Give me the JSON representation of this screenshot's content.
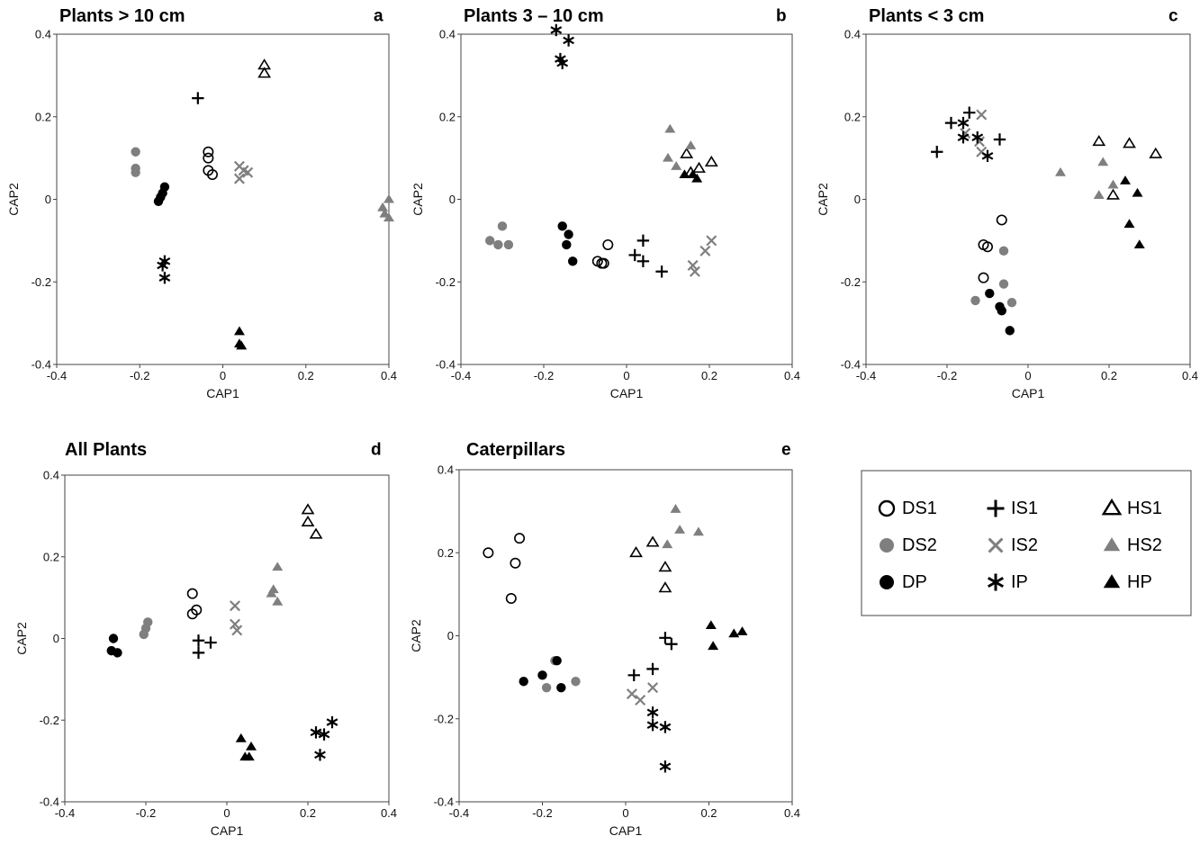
{
  "chart_data": [
    {
      "type": "scatter",
      "panel": "a",
      "title": "Plants  > 10 cm",
      "xlabel": "CAP1",
      "ylabel": "CAP2",
      "xlim": [
        -0.4,
        0.4
      ],
      "ylim": [
        -0.4,
        0.4
      ],
      "xticks": [
        "-0.4",
        "-0.2",
        "0",
        "0.2",
        "0.4"
      ],
      "yticks": [
        "0.4",
        "0.2",
        "0",
        "-0.2",
        "-0.4"
      ],
      "series": [
        {
          "name": "DS1",
          "points": [
            [
              -0.035,
              0.115
            ],
            [
              -0.035,
              0.1
            ],
            [
              -0.035,
              0.07
            ],
            [
              -0.025,
              0.06
            ]
          ]
        },
        {
          "name": "DS2",
          "points": [
            [
              -0.21,
              0.115
            ],
            [
              -0.21,
              0.075
            ],
            [
              -0.21,
              0.065
            ]
          ]
        },
        {
          "name": "DP",
          "points": [
            [
              -0.14,
              0.03
            ],
            [
              -0.145,
              0.015
            ],
            [
              -0.15,
              0.005
            ],
            [
              -0.155,
              -0.005
            ]
          ]
        },
        {
          "name": "IS1",
          "points": [
            [
              -0.06,
              0.245
            ]
          ]
        },
        {
          "name": "IS2",
          "points": [
            [
              0.04,
              0.08
            ],
            [
              0.05,
              0.07
            ],
            [
              0.06,
              0.065
            ],
            [
              0.04,
              0.05
            ]
          ]
        },
        {
          "name": "IP",
          "points": [
            [
              -0.14,
              -0.15
            ],
            [
              -0.145,
              -0.16
            ],
            [
              -0.14,
              -0.19
            ]
          ]
        },
        {
          "name": "HS1",
          "points": [
            [
              0.1,
              0.325
            ],
            [
              0.1,
              0.305
            ]
          ]
        },
        {
          "name": "HS2",
          "points": [
            [
              0.4,
              0.0
            ],
            [
              0.385,
              -0.02
            ],
            [
              0.39,
              -0.035
            ],
            [
              0.4,
              -0.045
            ]
          ]
        },
        {
          "name": "HP",
          "points": [
            [
              0.04,
              -0.32
            ],
            [
              0.04,
              -0.35
            ],
            [
              0.045,
              -0.355
            ]
          ]
        }
      ]
    },
    {
      "type": "scatter",
      "panel": "b",
      "title": "Plants 3 – 10 cm",
      "xlabel": "CAP1",
      "ylabel": "CAP2",
      "xlim": [
        -0.4,
        0.4
      ],
      "ylim": [
        -0.4,
        0.4
      ],
      "xticks": [
        "-0.4",
        "-0.2",
        "0",
        "0.2",
        "0.4"
      ],
      "yticks": [
        "0.4",
        "0.2",
        "0",
        "-0.2",
        "-0.4"
      ],
      "series": [
        {
          "name": "DS1",
          "points": [
            [
              -0.045,
              -0.11
            ],
            [
              -0.07,
              -0.15
            ],
            [
              -0.06,
              -0.155
            ],
            [
              -0.055,
              -0.155
            ]
          ]
        },
        {
          "name": "DS2",
          "points": [
            [
              -0.33,
              -0.1
            ],
            [
              -0.3,
              -0.065
            ],
            [
              -0.31,
              -0.11
            ],
            [
              -0.285,
              -0.11
            ]
          ]
        },
        {
          "name": "DP",
          "points": [
            [
              -0.155,
              -0.065
            ],
            [
              -0.14,
              -0.085
            ],
            [
              -0.145,
              -0.11
            ],
            [
              -0.13,
              -0.15
            ]
          ]
        },
        {
          "name": "IS1",
          "points": [
            [
              0.04,
              -0.1
            ],
            [
              0.02,
              -0.135
            ],
            [
              0.04,
              -0.15
            ],
            [
              0.085,
              -0.175
            ]
          ]
        },
        {
          "name": "IS2",
          "points": [
            [
              0.205,
              -0.1
            ],
            [
              0.19,
              -0.125
            ],
            [
              0.16,
              -0.16
            ],
            [
              0.165,
              -0.175
            ]
          ]
        },
        {
          "name": "IP",
          "points": [
            [
              -0.17,
              0.41
            ],
            [
              -0.14,
              0.385
            ],
            [
              -0.16,
              0.34
            ],
            [
              -0.155,
              0.33
            ]
          ]
        },
        {
          "name": "HS1",
          "points": [
            [
              0.145,
              0.11
            ],
            [
              0.205,
              0.09
            ],
            [
              0.175,
              0.075
            ],
            [
              0.155,
              0.065
            ]
          ]
        },
        {
          "name": "HS2",
          "points": [
            [
              0.105,
              0.17
            ],
            [
              0.155,
              0.13
            ],
            [
              0.1,
              0.1
            ],
            [
              0.12,
              0.08
            ]
          ]
        },
        {
          "name": "HP",
          "points": [
            [
              0.14,
              0.06
            ],
            [
              0.16,
              0.06
            ],
            [
              0.17,
              0.05
            ]
          ]
        }
      ]
    },
    {
      "type": "scatter",
      "panel": "c",
      "title": "Plants < 3 cm",
      "xlabel": "CAP1",
      "ylabel": "CAP2",
      "xlim": [
        -0.4,
        0.4
      ],
      "ylim": [
        -0.4,
        0.4
      ],
      "xticks": [
        "-0.4",
        "-0.2",
        "0",
        "0.2",
        "0.4"
      ],
      "yticks": [
        "0.4",
        "0.2",
        "0",
        "-0.2",
        "-0.4"
      ],
      "series": [
        {
          "name": "DS1",
          "points": [
            [
              -0.065,
              -0.05
            ],
            [
              -0.11,
              -0.11
            ],
            [
              -0.1,
              -0.115
            ],
            [
              -0.11,
              -0.19
            ]
          ]
        },
        {
          "name": "DS2",
          "points": [
            [
              -0.06,
              -0.125
            ],
            [
              -0.06,
              -0.205
            ],
            [
              -0.13,
              -0.245
            ],
            [
              -0.04,
              -0.25
            ]
          ]
        },
        {
          "name": "DP",
          "points": [
            [
              -0.095,
              -0.228
            ],
            [
              -0.07,
              -0.26
            ],
            [
              -0.065,
              -0.27
            ],
            [
              -0.045,
              -0.318
            ]
          ]
        },
        {
          "name": "IS1",
          "points": [
            [
              -0.225,
              0.115
            ],
            [
              -0.19,
              0.185
            ],
            [
              -0.145,
              0.21
            ],
            [
              -0.07,
              0.145
            ]
          ]
        },
        {
          "name": "IS2",
          "points": [
            [
              -0.115,
              0.205
            ],
            [
              -0.155,
              0.16
            ],
            [
              -0.12,
              0.14
            ],
            [
              -0.115,
              0.115
            ]
          ]
        },
        {
          "name": "IP",
          "points": [
            [
              -0.16,
              0.185
            ],
            [
              -0.16,
              0.15
            ],
            [
              -0.125,
              0.15
            ],
            [
              -0.1,
              0.105
            ]
          ]
        },
        {
          "name": "HS1",
          "points": [
            [
              0.175,
              0.14
            ],
            [
              0.25,
              0.135
            ],
            [
              0.315,
              0.11
            ],
            [
              0.21,
              0.01
            ]
          ]
        },
        {
          "name": "HS2",
          "points": [
            [
              0.08,
              0.065
            ],
            [
              0.185,
              0.09
            ],
            [
              0.21,
              0.035
            ],
            [
              0.175,
              0.01
            ]
          ]
        },
        {
          "name": "HP",
          "points": [
            [
              0.24,
              0.045
            ],
            [
              0.27,
              0.015
            ],
            [
              0.25,
              -0.06
            ],
            [
              0.275,
              -0.11
            ]
          ]
        }
      ]
    },
    {
      "type": "scatter",
      "panel": "d",
      "title": "All Plants",
      "xlabel": "CAP1",
      "ylabel": "CAP2",
      "xlim": [
        -0.4,
        0.4
      ],
      "ylim": [
        -0.4,
        0.4
      ],
      "xticks": [
        "-0.4",
        "-0.2",
        "0",
        "0.2",
        "0.4"
      ],
      "yticks": [
        "0.4",
        "0.2",
        "0",
        "-0.2",
        "-0.4"
      ],
      "series": [
        {
          "name": "DS1",
          "points": [
            [
              -0.085,
              0.11
            ],
            [
              -0.075,
              0.07
            ],
            [
              -0.085,
              0.06
            ]
          ]
        },
        {
          "name": "DS2",
          "points": [
            [
              -0.195,
              0.04
            ],
            [
              -0.2,
              0.025
            ],
            [
              -0.205,
              0.01
            ]
          ]
        },
        {
          "name": "DP",
          "points": [
            [
              -0.28,
              0.0
            ],
            [
              -0.285,
              -0.03
            ],
            [
              -0.27,
              -0.035
            ]
          ]
        },
        {
          "name": "IS1",
          "points": [
            [
              -0.07,
              -0.005
            ],
            [
              -0.04,
              -0.01
            ],
            [
              -0.07,
              -0.035
            ]
          ]
        },
        {
          "name": "IS2",
          "points": [
            [
              0.02,
              0.08
            ],
            [
              0.02,
              0.035
            ],
            [
              0.025,
              0.02
            ]
          ]
        },
        {
          "name": "IP",
          "points": [
            [
              0.26,
              -0.205
            ],
            [
              0.22,
              -0.23
            ],
            [
              0.24,
              -0.235
            ],
            [
              0.23,
              -0.285
            ]
          ]
        },
        {
          "name": "HS1",
          "points": [
            [
              0.2,
              0.315
            ],
            [
              0.2,
              0.285
            ],
            [
              0.22,
              0.255
            ]
          ]
        },
        {
          "name": "HS2",
          "points": [
            [
              0.125,
              0.175
            ],
            [
              0.115,
              0.12
            ],
            [
              0.11,
              0.11
            ],
            [
              0.125,
              0.09
            ]
          ]
        },
        {
          "name": "HP",
          "points": [
            [
              0.035,
              -0.245
            ],
            [
              0.06,
              -0.265
            ],
            [
              0.045,
              -0.29
            ],
            [
              0.055,
              -0.29
            ]
          ]
        }
      ]
    },
    {
      "type": "scatter",
      "panel": "e",
      "title": "Caterpillars",
      "xlabel": "CAP1",
      "ylabel": "CAP2",
      "xlim": [
        -0.4,
        0.4
      ],
      "ylim": [
        -0.4,
        0.4
      ],
      "xticks": [
        "-0.4",
        "-0.2",
        "0",
        "0.2",
        "0.4"
      ],
      "yticks": [
        "0.4",
        "0.2",
        "0",
        "-0.2",
        "-0.4"
      ],
      "series": [
        {
          "name": "DS1",
          "points": [
            [
              -0.33,
              0.2
            ],
            [
              -0.255,
              0.235
            ],
            [
              -0.265,
              0.175
            ],
            [
              -0.275,
              0.09
            ]
          ]
        },
        {
          "name": "DS2",
          "points": [
            [
              -0.17,
              -0.06
            ],
            [
              -0.19,
              -0.125
            ],
            [
              -0.12,
              -0.11
            ]
          ]
        },
        {
          "name": "DP",
          "points": [
            [
              -0.245,
              -0.11
            ],
            [
              -0.2,
              -0.095
            ],
            [
              -0.165,
              -0.06
            ],
            [
              -0.155,
              -0.125
            ]
          ]
        },
        {
          "name": "IS1",
          "points": [
            [
              0.02,
              -0.095
            ],
            [
              0.065,
              -0.08
            ],
            [
              0.095,
              -0.005
            ],
            [
              0.11,
              -0.02
            ]
          ]
        },
        {
          "name": "IS2",
          "points": [
            [
              0.015,
              -0.14
            ],
            [
              0.035,
              -0.155
            ],
            [
              0.065,
              -0.125
            ]
          ]
        },
        {
          "name": "IP",
          "points": [
            [
              0.065,
              -0.185
            ],
            [
              0.065,
              -0.215
            ],
            [
              0.095,
              -0.22
            ],
            [
              0.095,
              -0.315
            ]
          ]
        },
        {
          "name": "HS1",
          "points": [
            [
              0.025,
              0.2
            ],
            [
              0.065,
              0.225
            ],
            [
              0.095,
              0.165
            ],
            [
              0.095,
              0.115
            ]
          ]
        },
        {
          "name": "HS2",
          "points": [
            [
              0.12,
              0.305
            ],
            [
              0.13,
              0.255
            ],
            [
              0.175,
              0.25
            ],
            [
              0.1,
              0.22
            ]
          ]
        },
        {
          "name": "HP",
          "points": [
            [
              0.205,
              0.025
            ],
            [
              0.21,
              -0.025
            ],
            [
              0.26,
              0.005
            ],
            [
              0.28,
              0.01
            ]
          ]
        }
      ]
    }
  ],
  "legend": {
    "items": [
      {
        "name": "DS1",
        "label": "DS1"
      },
      {
        "name": "DS2",
        "label": "DS2"
      },
      {
        "name": "DP",
        "label": "DP"
      },
      {
        "name": "IS1",
        "label": "IS1"
      },
      {
        "name": "IS2",
        "label": "IS2"
      },
      {
        "name": "IP",
        "label": "IP"
      },
      {
        "name": "HS1",
        "label": "HS1"
      },
      {
        "name": "HS2",
        "label": "HS2"
      },
      {
        "name": "HP",
        "label": "HP"
      }
    ]
  },
  "colors": {
    "black": "#000000",
    "gray": "#7f7f7f",
    "frame": "#444444"
  }
}
